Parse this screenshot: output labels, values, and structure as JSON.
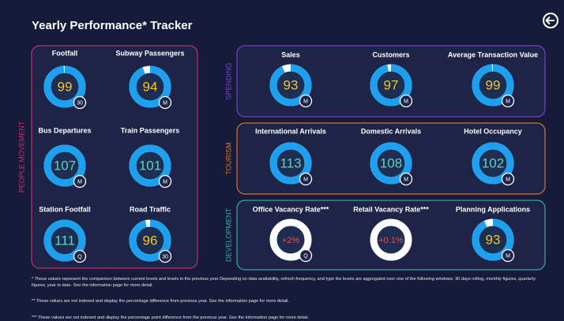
{
  "header": {
    "title": "Yearly Performance* Tracker"
  },
  "groups": [
    {
      "label": "PEOPLE MOVEMENT",
      "color": "#c2306e",
      "tiles": [
        {
          "label": "Footfall",
          "value": 99,
          "badge": "30",
          "color": "#f5c518"
        },
        {
          "label": "Subway Passengers",
          "value": 94,
          "badge": "M",
          "color": "#f5c518"
        },
        {
          "label": "Bus Departures",
          "value": 107,
          "badge": "M",
          "color": "#5fd3c0"
        },
        {
          "label": "Train Passengers",
          "value": 101,
          "badge": "M",
          "color": "#5fd3c0"
        },
        {
          "label": "Station Footfall",
          "value": 111,
          "badge": "Q",
          "color": "#5fd3c0"
        },
        {
          "label": "Road Traffic",
          "value": 96,
          "badge": "30",
          "color": "#f5c518"
        }
      ]
    },
    {
      "label": "SPENDING",
      "color": "#7a3fd0",
      "tiles": [
        {
          "label": "Sales",
          "value": 93,
          "badge": "M",
          "color": "#f5c518"
        },
        {
          "label": "Customers",
          "value": 97,
          "badge": "M",
          "color": "#f5c518"
        },
        {
          "label": "Average Transaction Value",
          "value": 99,
          "badge": "M",
          "color": "#f5c518"
        }
      ]
    },
    {
      "label": "TOURISM",
      "color": "#d8722a",
      "tiles": [
        {
          "label": "International Arrivals",
          "value": 113,
          "badge": "M",
          "color": "#5fd3c0"
        },
        {
          "label": "Domestic Arrivals",
          "value": 108,
          "badge": "M",
          "color": "#5fd3c0"
        },
        {
          "label": "Hotel Occupancy",
          "value": 102,
          "badge": "M",
          "color": "#5fd3c0"
        }
      ]
    },
    {
      "label": "DEVELOPMENT",
      "color": "#3aa8a0",
      "tiles": [
        {
          "label": "Office Vacancy Rate***",
          "value": "+2%",
          "badge": "Q",
          "color": "#e8504a"
        },
        {
          "label": "Retail Vacancy Rate***",
          "value": "+0.1%",
          "badge": "",
          "color": "#e8504a"
        },
        {
          "label": "Planning Applications",
          "value": 93,
          "badge": "M",
          "color": "#f5c518"
        }
      ]
    }
  ],
  "footnotes": [
    "* These values represent the comparison between current levels and levels in the previous year Depending on data availability, refresh frequency, and type the levels are aggregated over one of the following windows: 30 days rolling, monthly figures, quarterly figures, year to date. See the information page for more detail.",
    "** These values are not indexed and display the percentage difference from previous year. See the information page for more detail.",
    "*** These values are not indexed and display the percentage point difference from the previous year. See the information page for more detail."
  ]
}
